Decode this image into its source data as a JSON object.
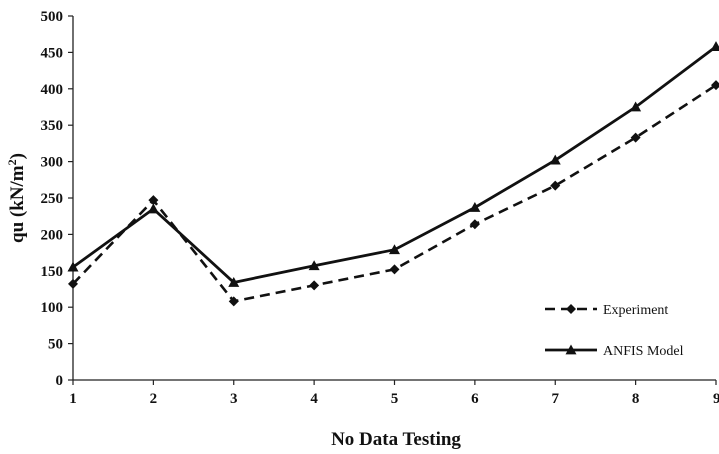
{
  "chart_data": {
    "type": "line",
    "title": "",
    "xlabel": "No Data Testing",
    "ylabel": "qu (kN/m²)",
    "ylabel_parts": {
      "main": "qu (kN/m",
      "superscript": "2",
      "close": ")"
    },
    "x": [
      "1",
      "2",
      "3",
      "4",
      "5",
      "6",
      "7",
      "8",
      "9"
    ],
    "ylim": [
      0,
      500
    ],
    "yticks": [
      "0",
      "50",
      "100",
      "150",
      "200",
      "250",
      "300",
      "350",
      "400",
      "450",
      "500"
    ],
    "grid": false,
    "legend_position": "bottom-right",
    "series": [
      {
        "name": "Experiment",
        "values": [
          132,
          247,
          108,
          130,
          152,
          214,
          267,
          333,
          405
        ],
        "line_style": "dashed",
        "marker": "diamond",
        "color": "#111111"
      },
      {
        "name": "ANFIS Model",
        "values": [
          155,
          235,
          134,
          157,
          179,
          237,
          302,
          375,
          458
        ],
        "line_style": "solid",
        "marker": "triangle",
        "color": "#111111"
      }
    ]
  }
}
